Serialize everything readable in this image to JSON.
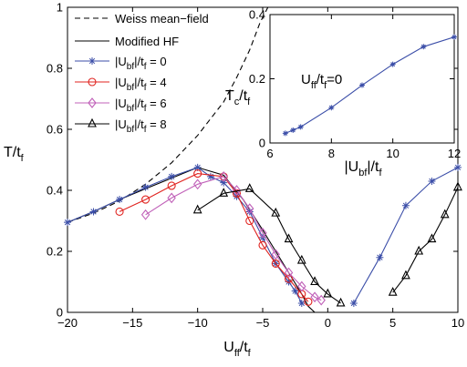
{
  "chart_data": [
    {
      "type": "line",
      "xlabel": "U",
      "xlabel_sub": "ff",
      "xlabel_mid": "/t",
      "xlabel_sub2": "f",
      "ylabel": "T/t",
      "ylabel_sub": "f",
      "xlim": [
        -20,
        10
      ],
      "ylim": [
        0,
        1
      ],
      "xticks": [
        "−20",
        "−15",
        "−10",
        "−5",
        "0",
        "5",
        "10"
      ],
      "xtick_values": [
        -20,
        -15,
        -10,
        -5,
        0,
        5,
        10
      ],
      "yticks": [
        "0",
        "0.2",
        "0.4",
        "0.6",
        "0.8",
        "1"
      ],
      "ytick_values": [
        0,
        0.2,
        0.4,
        0.6,
        0.8,
        1
      ],
      "legend_position": "top-left",
      "series": [
        {
          "name": "Weiss mean−field",
          "color": "#000000",
          "dash": "dashed",
          "marker": "none",
          "points": [
            [
              -20,
              0.295
            ],
            [
              -18,
              0.325
            ],
            [
              -16,
              0.365
            ],
            [
              -14,
              0.42
            ],
            [
              -12,
              0.49
            ],
            [
              -10,
              0.58
            ],
            [
              -8,
              0.69
            ],
            [
              -7,
              0.77
            ],
            [
              -6,
              0.86
            ],
            [
              -5.2,
              0.95
            ],
            [
              -4.6,
              1.0
            ]
          ]
        },
        {
          "name": "Modified HF",
          "color": "#000000",
          "dash": "solid",
          "marker": "none",
          "points": [
            [
              -20,
              0.295
            ],
            [
              -18,
              0.33
            ],
            [
              -16,
              0.37
            ],
            [
              -14,
              0.405
            ],
            [
              -12,
              0.44
            ],
            [
              -10,
              0.475
            ],
            [
              -8,
              0.45
            ],
            [
              -6.5,
              0.37
            ],
            [
              -5,
              0.27
            ],
            [
              -4,
              0.2
            ],
            [
              -3,
              0.13
            ],
            [
              -2,
              0.06
            ],
            [
              -1.5,
              0.02
            ],
            [
              -1,
              0.0
            ]
          ]
        },
        {
          "name": "|U_bf|/t_f = 0",
          "color": "#3b4ea8",
          "dash": "solid",
          "marker": "star",
          "points": [
            [
              -20,
              0.295
            ],
            [
              -18,
              0.33
            ],
            [
              -16,
              0.37
            ],
            [
              -14,
              0.41
            ],
            [
              -12,
              0.445
            ],
            [
              -10,
              0.475
            ],
            [
              -9,
              0.445
            ],
            [
              -8,
              0.425
            ],
            [
              -7,
              0.38
            ],
            [
              -6,
              0.33
            ],
            [
              -5,
              0.245
            ],
            [
              -4,
              0.16
            ],
            [
              -3,
              0.1
            ],
            [
              -2.5,
              0.07
            ],
            [
              -2,
              0.03
            ]
          ],
          "points2": [
            [
              2,
              0.03
            ],
            [
              4,
              0.18
            ],
            [
              6,
              0.35
            ],
            [
              8,
              0.43
            ],
            [
              10,
              0.475
            ]
          ]
        },
        {
          "name": "|U_bf|/t_f = 4",
          "color": "#e0231f",
          "dash": "solid",
          "marker": "circle",
          "points": [
            [
              -16,
              0.33
            ],
            [
              -14,
              0.37
            ],
            [
              -12,
              0.415
            ],
            [
              -10,
              0.455
            ],
            [
              -8,
              0.445
            ],
            [
              -7,
              0.39
            ],
            [
              -6,
              0.3
            ],
            [
              -5,
              0.22
            ],
            [
              -4,
              0.16
            ],
            [
              -3,
              0.11
            ],
            [
              -2,
              0.06
            ],
            [
              -1.5,
              0.035
            ]
          ]
        },
        {
          "name": "|U_bf|/t_f = 6",
          "color": "#c060b8",
          "dash": "solid",
          "marker": "diamond",
          "points": [
            [
              -14,
              0.32
            ],
            [
              -12,
              0.375
            ],
            [
              -10,
              0.42
            ],
            [
              -8,
              0.445
            ],
            [
              -7,
              0.4
            ],
            [
              -6,
              0.34
            ],
            [
              -5,
              0.26
            ],
            [
              -4,
              0.19
            ],
            [
              -3,
              0.13
            ],
            [
              -2,
              0.085
            ],
            [
              -1,
              0.05
            ],
            [
              -0.5,
              0.04
            ]
          ]
        },
        {
          "name": "|U_bf|/t_f = 8",
          "color": "#000000",
          "dash": "solid",
          "marker": "triangle",
          "points": [
            [
              -10,
              0.335
            ],
            [
              -8,
              0.39
            ],
            [
              -6,
              0.405
            ],
            [
              -4,
              0.325
            ],
            [
              -3,
              0.24
            ],
            [
              -2,
              0.17
            ],
            [
              -1,
              0.1
            ],
            [
              0,
              0.06
            ],
            [
              1,
              0.03
            ]
          ],
          "points2": [
            [
              5,
              0.065
            ],
            [
              6,
              0.12
            ],
            [
              7,
              0.2
            ],
            [
              8,
              0.24
            ],
            [
              9,
              0.32
            ],
            [
              10,
              0.41
            ]
          ]
        }
      ]
    },
    {
      "type": "line",
      "inset": true,
      "xlabel": "|U",
      "xlabel_sub": "bf",
      "xlabel_mid": "|/t",
      "xlabel_sub2": "f",
      "ylabel": "T",
      "ylabel_sub": "c",
      "ylabel_mid": "/t",
      "ylabel_sub2": "f",
      "annotation": "U",
      "annotation_sub": "ff",
      "annotation_mid": "/t",
      "annotation_sub2": "f",
      "annotation_tail": "=0",
      "xlim": [
        6,
        12
      ],
      "ylim": [
        0,
        0.4
      ],
      "xticks": [
        "6",
        "8",
        "10",
        "12"
      ],
      "xtick_values": [
        6,
        8,
        10,
        12
      ],
      "yticks": [
        "0",
        "0.2",
        "0.4"
      ],
      "ytick_values": [
        0,
        0.2,
        0.4
      ],
      "series": [
        {
          "color": "#3b4ea8",
          "marker": "star",
          "points": [
            [
              6.5,
              0.03
            ],
            [
              6.75,
              0.04
            ],
            [
              7,
              0.05
            ],
            [
              8,
              0.11
            ],
            [
              9,
              0.18
            ],
            [
              10,
              0.245
            ],
            [
              11,
              0.3
            ],
            [
              12,
              0.33
            ]
          ]
        }
      ]
    }
  ]
}
